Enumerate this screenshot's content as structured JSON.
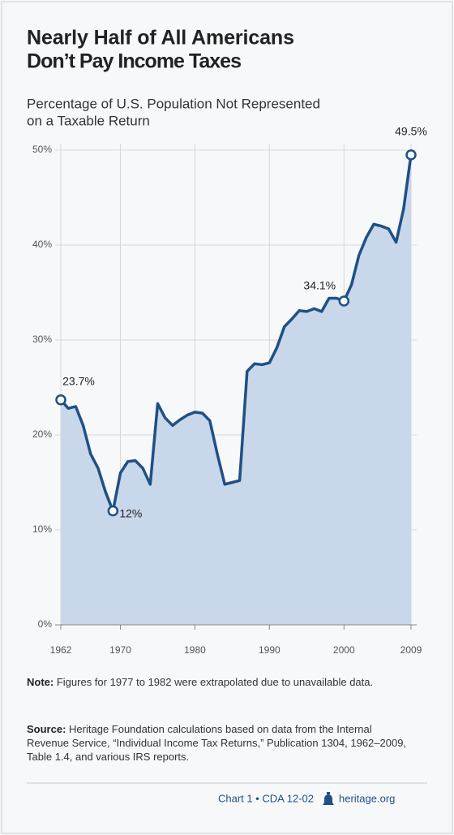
{
  "chart_data": {
    "type": "area",
    "title": [
      "Nearly Half of All Americans",
      "Don’t Pay Income Taxes"
    ],
    "subtitle": [
      "Percentage of U.S. Population Not Represented",
      "on a Taxable Return"
    ],
    "x": [
      1962,
      1963,
      1964,
      1965,
      1966,
      1967,
      1968,
      1969,
      1970,
      1971,
      1972,
      1973,
      1974,
      1975,
      1976,
      1977,
      1978,
      1979,
      1980,
      1981,
      1982,
      1983,
      1984,
      1985,
      1986,
      1987,
      1988,
      1989,
      1990,
      1991,
      1992,
      1993,
      1994,
      1995,
      1996,
      1997,
      1998,
      1999,
      2000,
      2001,
      2002,
      2003,
      2004,
      2005,
      2006,
      2007,
      2008,
      2009
    ],
    "values": [
      23.7,
      22.8,
      23.0,
      21.0,
      18.0,
      16.5,
      14.0,
      12.0,
      16.0,
      17.2,
      17.3,
      16.5,
      14.8,
      23.3,
      21.8,
      21.0,
      21.6,
      22.1,
      22.4,
      22.3,
      21.5,
      18.0,
      14.8,
      15.0,
      15.2,
      26.7,
      27.5,
      27.4,
      27.6,
      29.2,
      31.4,
      32.2,
      33.1,
      33.0,
      33.3,
      33.0,
      34.4,
      34.4,
      34.1,
      35.8,
      38.9,
      40.8,
      42.2,
      42.0,
      41.7,
      40.3,
      43.8,
      49.5
    ],
    "value_labels": [
      "23.7%",
      null,
      null,
      null,
      null,
      null,
      null,
      "12%",
      null,
      null,
      null,
      null,
      null,
      null,
      null,
      null,
      null,
      null,
      null,
      null,
      null,
      null,
      null,
      null,
      null,
      null,
      null,
      null,
      null,
      null,
      null,
      null,
      null,
      null,
      null,
      null,
      null,
      null,
      "34.1%",
      null,
      null,
      null,
      null,
      null,
      null,
      null,
      null,
      "49.5%"
    ],
    "color": "#1f5086",
    "fill": "#c9d7ea",
    "xlim": [
      1962,
      2009
    ],
    "xticks": [
      1962,
      1970,
      1980,
      1990,
      2000,
      2009
    ],
    "ylim": [
      0,
      50
    ],
    "yticks": [
      {
        "value": 0,
        "label": "0%"
      },
      {
        "value": 10,
        "label": "10%"
      },
      {
        "value": 20,
        "label": "20%"
      },
      {
        "value": 30,
        "label": "30%"
      },
      {
        "value": 40,
        "label": "40%"
      },
      {
        "value": 50,
        "label": "50%"
      }
    ],
    "grid": true,
    "note": {
      "label": "Note:",
      "text": "Figures for 1977 to 1982 were extrapolated due to unavailable data."
    },
    "source": {
      "label": "Source:",
      "text": "Heritage Foundation calculations based on data from the Internal Revenue Service, “Individual Income Tax Returns,” Publication 1304, 1962–2009, Table 1.4, and various IRS reports."
    },
    "footer": {
      "chart": "Chart 1 • CDA 12-02",
      "site": "heritage.org"
    }
  }
}
